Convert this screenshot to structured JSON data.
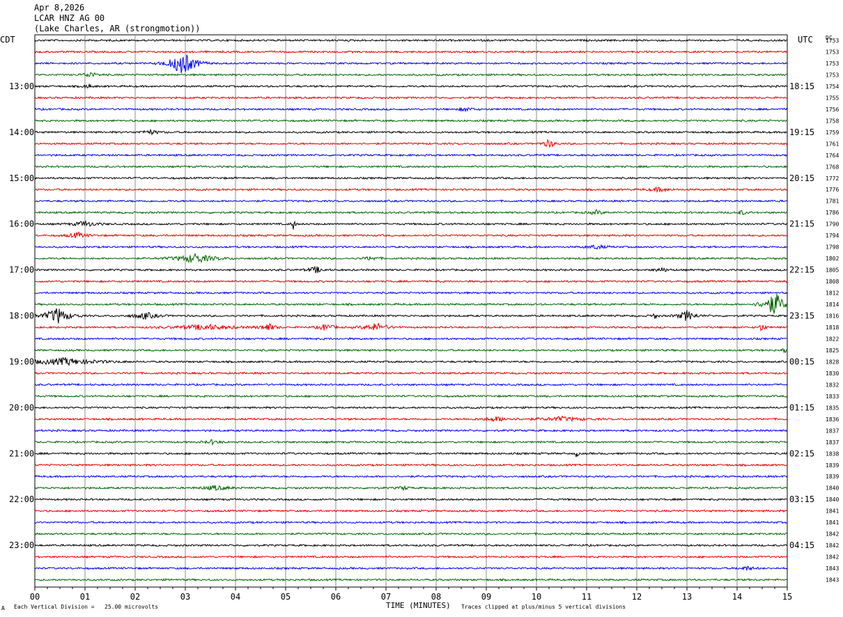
{
  "header": {
    "date": "Apr 8,2026",
    "station": "LCAR HNZ AG 00",
    "location": "(Lake Charles, AR (strongmotion))"
  },
  "axes": {
    "left_tz": "CDT",
    "right_tz": "UTC",
    "dc_label": "DC"
  },
  "footer": {
    "xlabel": "TIME (MINUTES)",
    "scale_note": "Each Vertical Division =   25.00 microvolts",
    "clip_note": "Traces clipped at plus/minus 5 vertical divisions",
    "logo_mark": "A"
  },
  "chart_data": {
    "type": "line",
    "title": "LCAR HNZ AG 00",
    "xlabel": "TIME (MINUTES)",
    "ylabel": "",
    "xlim": [
      0,
      15
    ],
    "x_ticks": [
      "00",
      "01",
      "02",
      "03",
      "04",
      "05",
      "06",
      "07",
      "08",
      "09",
      "10",
      "11",
      "12",
      "13",
      "14",
      "15"
    ],
    "trace_colors": [
      "#000000",
      "#ee0000",
      "#0000ee",
      "#006400"
    ],
    "left_hour_labels": [
      "13:00",
      "14:00",
      "15:00",
      "16:00",
      "17:00",
      "18:00",
      "19:00",
      "20:00",
      "21:00",
      "22:00",
      "23:00"
    ],
    "right_hour_labels": [
      "18:15",
      "19:15",
      "20:15",
      "21:15",
      "22:15",
      "23:15",
      "00:15",
      "01:15",
      "02:15",
      "03:15",
      "04:15"
    ],
    "hour_label_first_trace": 4,
    "trace_count": 48,
    "dc_values": [
      1753,
      1753,
      1753,
      1753,
      1754,
      1755,
      1756,
      1758,
      1759,
      1761,
      1764,
      1768,
      1772,
      1776,
      1781,
      1786,
      1790,
      1794,
      1798,
      1802,
      1805,
      1808,
      1812,
      1814,
      1816,
      1818,
      1822,
      1825,
      1828,
      1830,
      1832,
      1833,
      1835,
      1836,
      1837,
      1837,
      1838,
      1839,
      1839,
      1840,
      1840,
      1841,
      1841,
      1842,
      1842,
      1842,
      1843,
      1843
    ],
    "events": [
      {
        "trace": 2,
        "minute": 2.95,
        "amplitude": 18,
        "duration": 0.55
      },
      {
        "trace": 3,
        "minute": 1.1,
        "amplitude": 4,
        "duration": 0.3
      },
      {
        "trace": 4,
        "minute": 1.05,
        "amplitude": 3,
        "duration": 0.2
      },
      {
        "trace": 6,
        "minute": 8.6,
        "amplitude": 3,
        "duration": 0.3
      },
      {
        "trace": 8,
        "minute": 2.3,
        "amplitude": 3,
        "duration": 0.4
      },
      {
        "trace": 9,
        "minute": 10.25,
        "amplitude": 6,
        "duration": 0.25
      },
      {
        "trace": 13,
        "minute": 12.45,
        "amplitude": 3,
        "duration": 0.4
      },
      {
        "trace": 15,
        "minute": 11.2,
        "amplitude": 3,
        "duration": 0.3
      },
      {
        "trace": 15,
        "minute": 14.1,
        "amplitude": 3,
        "duration": 0.2
      },
      {
        "trace": 16,
        "minute": 1.0,
        "amplitude": 4,
        "duration": 0.5
      },
      {
        "trace": 16,
        "minute": 5.15,
        "amplitude": 9,
        "duration": 0.08
      },
      {
        "trace": 17,
        "minute": 0.85,
        "amplitude": 4,
        "duration": 0.4
      },
      {
        "trace": 18,
        "minute": 11.2,
        "amplitude": 3,
        "duration": 0.4
      },
      {
        "trace": 19,
        "minute": 3.2,
        "amplitude": 7,
        "duration": 0.8
      },
      {
        "trace": 19,
        "minute": 6.7,
        "amplitude": 3,
        "duration": 0.3
      },
      {
        "trace": 20,
        "minute": 5.6,
        "amplitude": 5,
        "duration": 0.3
      },
      {
        "trace": 20,
        "minute": 12.5,
        "amplitude": 3,
        "duration": 0.3
      },
      {
        "trace": 23,
        "minute": 14.75,
        "amplitude": 18,
        "duration": 0.45
      },
      {
        "trace": 24,
        "minute": 0.45,
        "amplitude": 12,
        "duration": 0.55
      },
      {
        "trace": 24,
        "minute": 2.2,
        "amplitude": 5,
        "duration": 0.5
      },
      {
        "trace": 24,
        "minute": 13.0,
        "amplitude": 8,
        "duration": 0.35
      },
      {
        "trace": 24,
        "minute": 12.35,
        "amplitude": 4,
        "duration": 0.15
      },
      {
        "trace": 25,
        "minute": 3.4,
        "amplitude": 4,
        "duration": 1.2
      },
      {
        "trace": 25,
        "minute": 4.65,
        "amplitude": 6,
        "duration": 0.3
      },
      {
        "trace": 25,
        "minute": 5.8,
        "amplitude": 6,
        "duration": 0.3
      },
      {
        "trace": 25,
        "minute": 6.8,
        "amplitude": 6,
        "duration": 0.5
      },
      {
        "trace": 25,
        "minute": 14.5,
        "amplitude": 8,
        "duration": 0.12
      },
      {
        "trace": 27,
        "minute": 14.95,
        "amplitude": 6,
        "duration": 0.1
      },
      {
        "trace": 28,
        "minute": 0.6,
        "amplitude": 5,
        "duration": 1.4
      },
      {
        "trace": 33,
        "minute": 9.2,
        "amplitude": 3,
        "duration": 0.7
      },
      {
        "trace": 33,
        "minute": 10.5,
        "amplitude": 3,
        "duration": 0.9
      },
      {
        "trace": 35,
        "minute": 3.55,
        "amplitude": 3,
        "duration": 0.3
      },
      {
        "trace": 36,
        "minute": 10.8,
        "amplitude": 7,
        "duration": 0.06
      },
      {
        "trace": 39,
        "minute": 3.6,
        "amplitude": 3,
        "duration": 0.6
      },
      {
        "trace": 39,
        "minute": 7.35,
        "amplitude": 3,
        "duration": 0.2
      },
      {
        "trace": 46,
        "minute": 14.2,
        "amplitude": 3,
        "duration": 0.3
      }
    ]
  }
}
